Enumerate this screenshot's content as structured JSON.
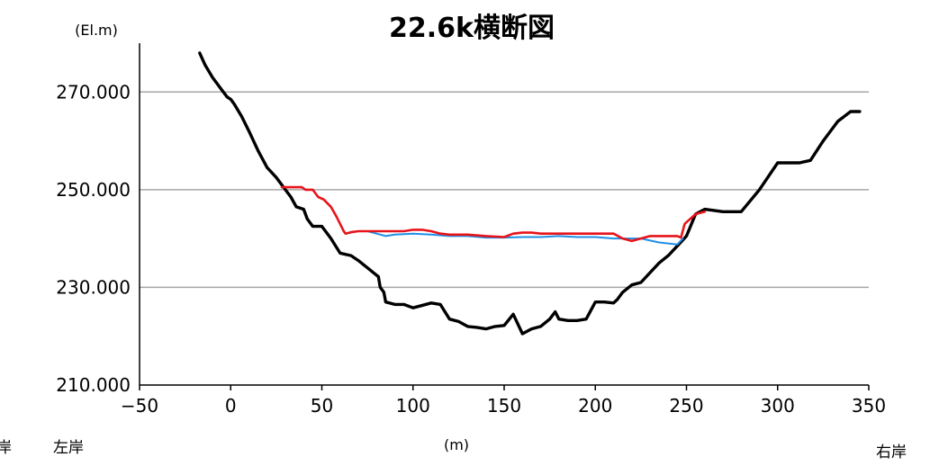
{
  "chart_data": {
    "type": "line",
    "title": "22.6k横断図",
    "ylabel": "(El.m)",
    "xlabel": "(m)",
    "left_bank_label": "左岸",
    "left_bank_label_clipped": "岸",
    "right_bank_label": "右岸",
    "xlim": [
      -50,
      350
    ],
    "ylim": [
      210,
      280
    ],
    "x_ticks": [
      -50,
      0,
      50,
      100,
      150,
      200,
      250,
      300,
      350
    ],
    "x_tick_labels": [
      "−50",
      "0",
      "50",
      "100",
      "150",
      "200",
      "250",
      "300",
      "350"
    ],
    "y_ticks": [
      210,
      230,
      250,
      270
    ],
    "y_tick_labels": [
      "210.000",
      "230.000",
      "250.000",
      "270.000"
    ],
    "grid": "horizontal",
    "series": [
      {
        "color": "#000000",
        "x": [
          -17,
          -14,
          -10,
          -5,
          -2,
          0,
          2,
          6,
          10,
          15,
          20,
          25,
          30,
          33,
          36,
          40,
          42,
          45,
          50,
          55,
          60,
          66,
          70,
          75,
          80,
          81,
          82,
          84,
          85,
          90,
          95,
          100,
          110,
          115,
          120,
          125,
          130,
          135,
          140,
          145,
          150,
          155,
          160,
          165,
          170,
          175,
          178,
          180,
          185,
          190,
          195,
          200,
          205,
          210,
          212,
          215,
          220,
          225,
          230,
          235,
          240,
          245,
          250,
          255,
          260,
          270,
          280,
          290,
          300,
          312,
          318,
          325,
          333,
          340,
          345
        ],
        "y": [
          278,
          275.5,
          273,
          270.5,
          269,
          268.5,
          267.5,
          265,
          262,
          258,
          254.5,
          252.5,
          250,
          248.5,
          246.5,
          246,
          244,
          242.5,
          242.5,
          240,
          237,
          236.5,
          235.5,
          234,
          232.5,
          232.2,
          230,
          229,
          227,
          226.5,
          226.5,
          225.8,
          226.8,
          226.5,
          223.5,
          223,
          222,
          221.8,
          221.5,
          222,
          222.2,
          224.5,
          220.5,
          221.5,
          222,
          223.5,
          225,
          223.5,
          223.2,
          223.2,
          223.5,
          227,
          227,
          226.8,
          227.5,
          229,
          230.5,
          231,
          233,
          235,
          236.5,
          238.5,
          240.5,
          245,
          246,
          245.5,
          245.5,
          250,
          255.5,
          255.5,
          256,
          260,
          264,
          266,
          266
        ]
      },
      {
        "color": "#1f8fe6",
        "x": [
          63,
          70,
          75,
          80,
          85,
          90,
          100,
          110,
          120,
          130,
          140,
          150,
          160,
          170,
          180,
          190,
          200,
          210,
          220,
          225,
          235,
          240,
          245,
          248
        ],
        "y": [
          241,
          241.5,
          241.5,
          241,
          240.5,
          240.8,
          241,
          240.8,
          240.5,
          240.5,
          240.2,
          240.2,
          240.3,
          240.3,
          240.5,
          240.3,
          240.3,
          240,
          240,
          240,
          239.2,
          239,
          238.8,
          240
        ]
      },
      {
        "color": "#e8141b",
        "x": [
          28,
          33,
          36,
          39,
          41,
          43,
          45,
          48,
          51,
          55,
          58,
          60,
          62,
          63,
          66,
          70,
          75,
          80,
          90,
          95,
          100,
          105,
          110,
          115,
          120,
          130,
          140,
          150,
          155,
          160,
          165,
          170,
          180,
          190,
          200,
          210,
          215,
          220,
          225,
          230,
          240,
          245,
          247,
          249,
          252,
          255,
          260
        ],
        "y": [
          250.5,
          250.5,
          250.5,
          250.5,
          250,
          250,
          250,
          248.5,
          248,
          246.5,
          244.5,
          243,
          241.5,
          241,
          241.3,
          241.5,
          241.5,
          241.5,
          241.5,
          241.5,
          241.8,
          241.8,
          241.5,
          241,
          240.8,
          240.8,
          240.5,
          240.3,
          241,
          241.2,
          241.2,
          241,
          241,
          241,
          241,
          241,
          240,
          239.5,
          240,
          240.5,
          240.5,
          240.5,
          240.2,
          243,
          244,
          245,
          245.5
        ]
      }
    ]
  }
}
